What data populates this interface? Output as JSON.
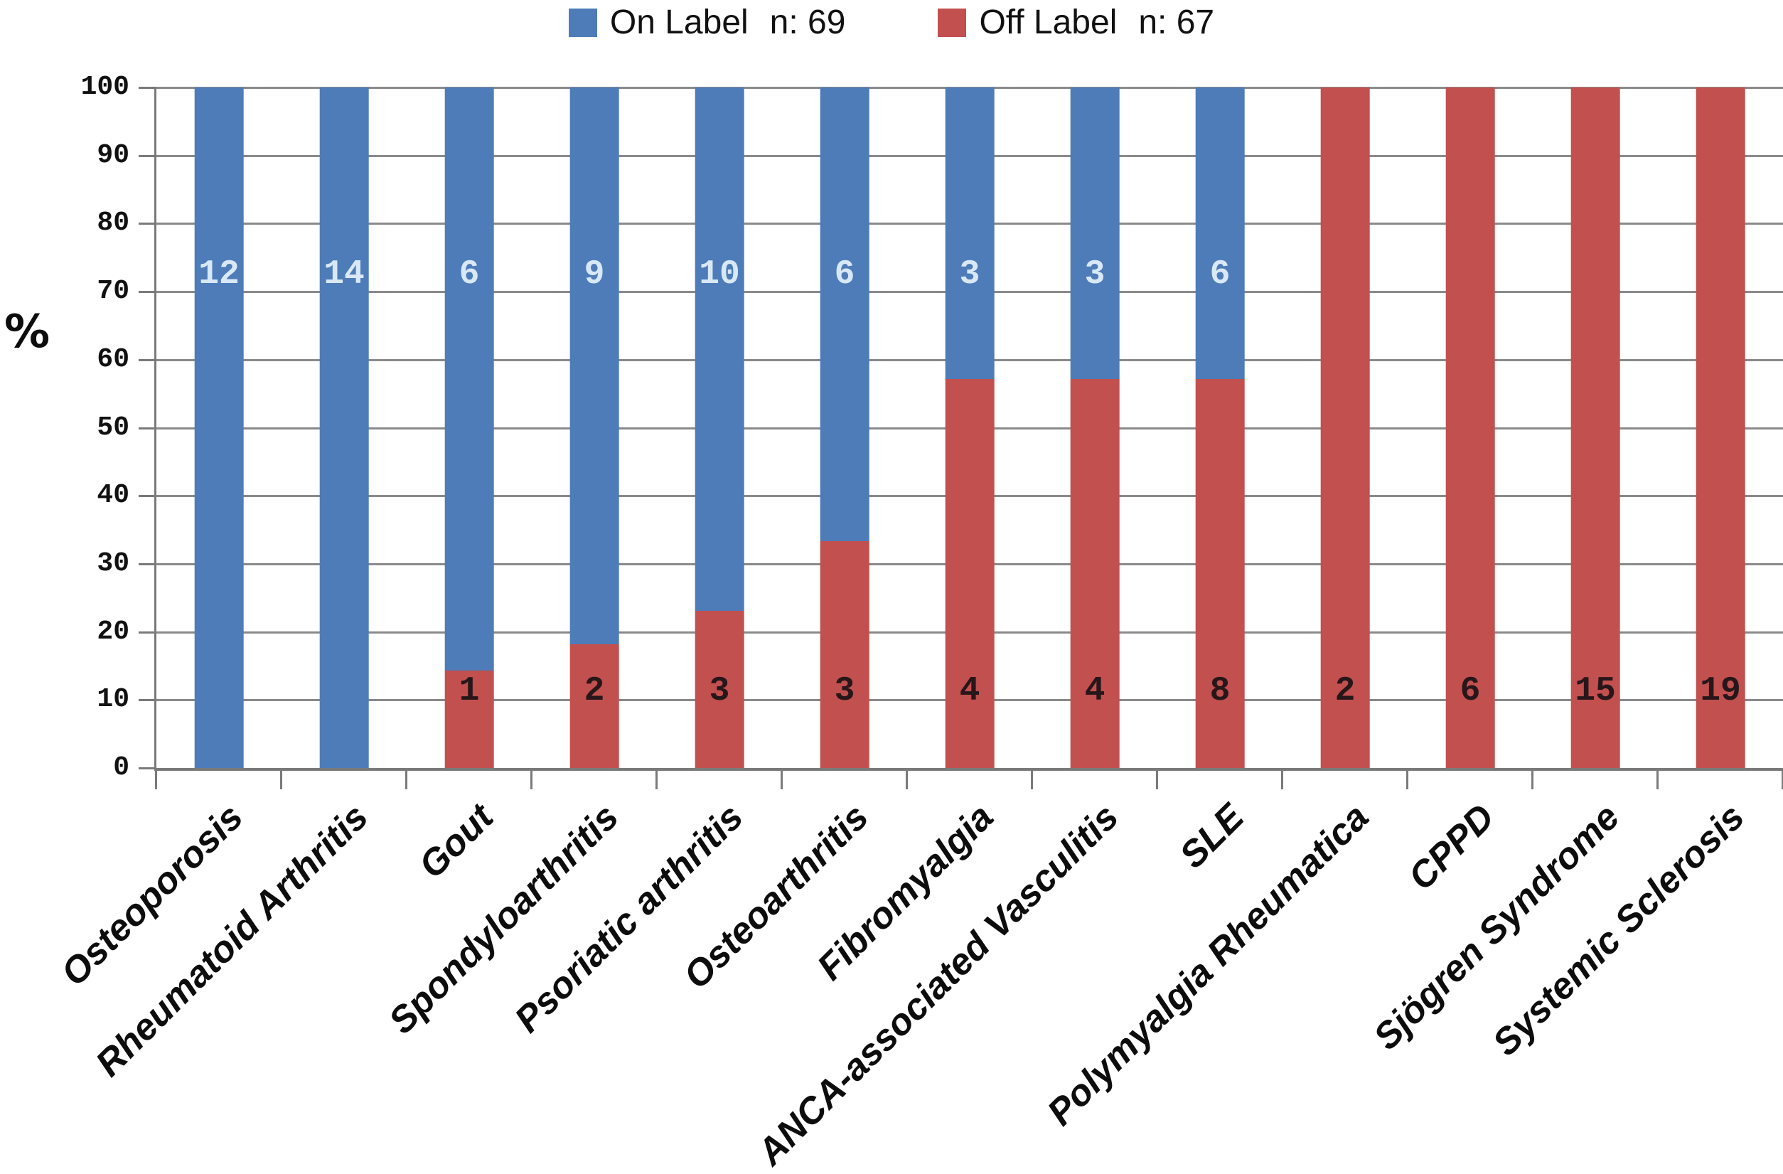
{
  "legend": {
    "items": [
      {
        "label": "On Label",
        "count": "n: 69",
        "color": "#4d7cb9"
      },
      {
        "label": "Off Label",
        "count": "n: 67",
        "color": "#c1504e"
      }
    ]
  },
  "y_axis": {
    "title": "%",
    "ticks": [
      "0",
      "10",
      "20",
      "30",
      "40",
      "50",
      "60",
      "70",
      "80",
      "90",
      "100"
    ],
    "min": 0,
    "max": 100
  },
  "chart_data": {
    "type": "bar",
    "subtype": "100-percent-stacked-column",
    "title": "",
    "xlabel": "",
    "ylabel": "%",
    "ylim": [
      0,
      100
    ],
    "grid": true,
    "legend_position": "top",
    "categories": [
      "Osteoporosis",
      "Rheumatoid Arthritis",
      "Gout",
      "Spondyloarthritis",
      "Psoriatic arthritis",
      "Osteoarthritis",
      "Fibromyalgia",
      "ANCA-associated Vasculitis",
      "SLE",
      "Polymyalgia Rheumatica",
      "CPPD",
      "Sjögren Syndrome",
      "Systemic Sclerosis"
    ],
    "series": [
      {
        "name": "On Label",
        "n_total": 69,
        "color": "#4d7cb9",
        "counts": [
          12,
          14,
          6,
          9,
          10,
          6,
          3,
          3,
          6,
          0,
          0,
          0,
          0
        ],
        "percent": [
          100,
          100,
          85.7,
          81.8,
          76.9,
          66.7,
          42.9,
          42.9,
          42.9,
          0,
          0,
          0,
          0
        ]
      },
      {
        "name": "Off Label",
        "n_total": 67,
        "color": "#c1504e",
        "counts": [
          0,
          0,
          1,
          2,
          3,
          3,
          4,
          4,
          8,
          2,
          6,
          15,
          19
        ],
        "percent": [
          0,
          0,
          14.3,
          18.2,
          23.1,
          33.3,
          57.1,
          57.1,
          57.1,
          100,
          100,
          100,
          100
        ]
      }
    ],
    "value_labels_on_color": "#d9e8f7",
    "value_labels_off_color": "#27161a",
    "gridline_color": "#8a8a8a",
    "axis_color": "#7a7a7a"
  }
}
